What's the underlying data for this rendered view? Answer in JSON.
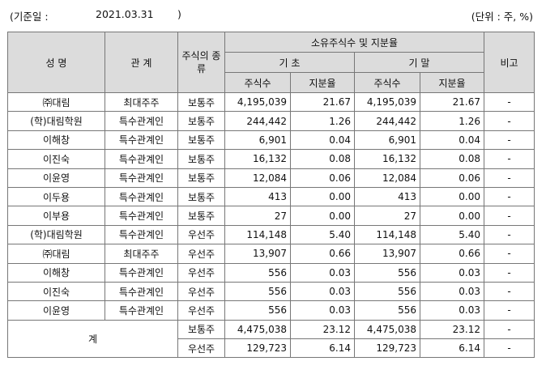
{
  "topline": {
    "base_label": "(기준일 :",
    "base_date": "2021.03.31",
    "base_close": ")",
    "unit": "(단위 : 주, %)"
  },
  "header": {
    "name": "성 명",
    "relation": "관 계",
    "stock_type": "주식의 종류",
    "holdings": "소유주식수 및 지분율",
    "begin": "기 초",
    "end": "기 말",
    "note": "비고",
    "shares": "주식수",
    "ratio": "지분율"
  },
  "rows": [
    {
      "name": "㈜대림",
      "relation": "최대주주",
      "type": "보통주",
      "b_shares": "4,195,039",
      "b_ratio": "21.67",
      "e_shares": "4,195,039",
      "e_ratio": "21.67",
      "note": "-"
    },
    {
      "name": "(학)대림학원",
      "relation": "특수관계인",
      "type": "보통주",
      "b_shares": "244,442",
      "b_ratio": "1.26",
      "e_shares": "244,442",
      "e_ratio": "1.26",
      "note": "-"
    },
    {
      "name": "이해창",
      "relation": "특수관계인",
      "type": "보통주",
      "b_shares": "6,901",
      "b_ratio": "0.04",
      "e_shares": "6,901",
      "e_ratio": "0.04",
      "note": "-"
    },
    {
      "name": "이진숙",
      "relation": "특수관계인",
      "type": "보통주",
      "b_shares": "16,132",
      "b_ratio": "0.08",
      "e_shares": "16,132",
      "e_ratio": "0.08",
      "note": "-"
    },
    {
      "name": "이윤영",
      "relation": "특수관계인",
      "type": "보통주",
      "b_shares": "12,084",
      "b_ratio": "0.06",
      "e_shares": "12,084",
      "e_ratio": "0.06",
      "note": "-"
    },
    {
      "name": "이두용",
      "relation": "특수관계인",
      "type": "보통주",
      "b_shares": "413",
      "b_ratio": "0.00",
      "e_shares": "413",
      "e_ratio": "0.00",
      "note": "-"
    },
    {
      "name": "이부용",
      "relation": "특수관계인",
      "type": "보통주",
      "b_shares": "27",
      "b_ratio": "0.00",
      "e_shares": "27",
      "e_ratio": "0.00",
      "note": "-"
    },
    {
      "name": "(학)대림학원",
      "relation": "특수관계인",
      "type": "우선주",
      "b_shares": "114,148",
      "b_ratio": "5.40",
      "e_shares": "114,148",
      "e_ratio": "5.40",
      "note": "-"
    },
    {
      "name": "㈜대림",
      "relation": "최대주주",
      "type": "우선주",
      "b_shares": "13,907",
      "b_ratio": "0.66",
      "e_shares": "13,907",
      "e_ratio": "0.66",
      "note": "-"
    },
    {
      "name": "이해창",
      "relation": "특수관계인",
      "type": "우선주",
      "b_shares": "556",
      "b_ratio": "0.03",
      "e_shares": "556",
      "e_ratio": "0.03",
      "note": "-"
    },
    {
      "name": "이진숙",
      "relation": "특수관계인",
      "type": "우선주",
      "b_shares": "556",
      "b_ratio": "0.03",
      "e_shares": "556",
      "e_ratio": "0.03",
      "note": "-"
    },
    {
      "name": "이윤영",
      "relation": "특수관계인",
      "type": "우선주",
      "b_shares": "556",
      "b_ratio": "0.03",
      "e_shares": "556",
      "e_ratio": "0.03",
      "note": "-"
    }
  ],
  "total": {
    "label": "계",
    "rows": [
      {
        "type": "보통주",
        "b_shares": "4,475,038",
        "b_ratio": "23.12",
        "e_shares": "4,475,038",
        "e_ratio": "23.12",
        "note": "-"
      },
      {
        "type": "우선주",
        "b_shares": "129,723",
        "b_ratio": "6.14",
        "e_shares": "129,723",
        "e_ratio": "6.14",
        "note": "-"
      }
    ]
  }
}
